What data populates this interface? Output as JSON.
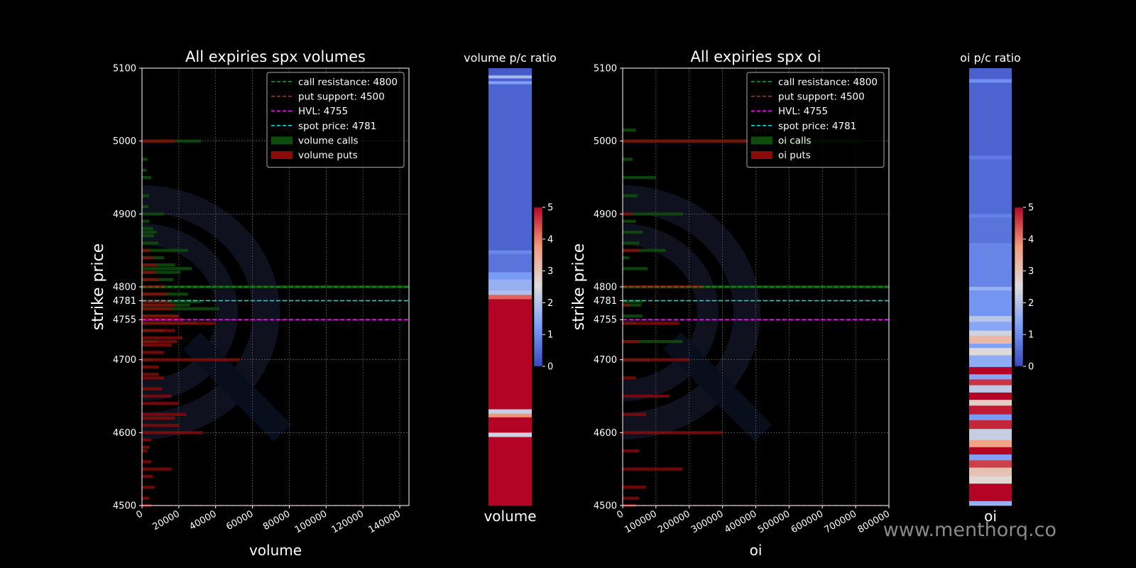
{
  "watermark": "www.menthorq.co",
  "colors": {
    "calls": "#0e4d0e",
    "puts": "#8b0a0a",
    "call_resistance": "#1fa31f",
    "put_support": "#e02020",
    "hvl": "#ff00ff",
    "spot": "#00e5e5",
    "grid": "#777777"
  },
  "chart_data": [
    {
      "type": "bar",
      "orientation": "horizontal",
      "title": "All expiries  spx volumes",
      "xlabel": "volume",
      "ylabel": "strike price",
      "xlim": [
        0,
        145000
      ],
      "ylim": [
        4500,
        5100
      ],
      "xticks": [
        0,
        20000,
        40000,
        60000,
        80000,
        100000,
        120000,
        140000
      ],
      "yticks": [
        4500,
        4600,
        4700,
        4755,
        4781,
        4800,
        4900,
        5000,
        5100
      ],
      "grid": true,
      "legend_position": "top-right",
      "lines": [
        {
          "label": "call resistance: 4800",
          "y": 4800,
          "key": "call_resistance"
        },
        {
          "label": "put support: 4500",
          "y": 4500,
          "key": "put_support"
        },
        {
          "label": "HVL: 4755",
          "y": 4755,
          "key": "hvl"
        },
        {
          "label": "spot price: 4781",
          "y": 4781,
          "key": "spot"
        }
      ],
      "series": [
        {
          "name": "volume calls",
          "key": "calls",
          "strikes": [
            5000,
            4975,
            4960,
            4950,
            4925,
            4910,
            4900,
            4890,
            4880,
            4875,
            4870,
            4860,
            4850,
            4840,
            4830,
            4825,
            4820,
            4810,
            4800,
            4790,
            4780,
            4775,
            4770,
            4760,
            4750,
            4740,
            4725,
            4700
          ],
          "values": [
            32000,
            3000,
            2500,
            5000,
            4000,
            3500,
            12000,
            4000,
            6000,
            8000,
            6500,
            9000,
            25000,
            12000,
            18000,
            27000,
            21000,
            17000,
            145000,
            25000,
            32000,
            26000,
            42000,
            20000,
            30000,
            12000,
            8000,
            6000
          ]
        },
        {
          "name": "volume puts",
          "key": "puts",
          "strikes": [
            5000,
            4850,
            4840,
            4830,
            4820,
            4810,
            4800,
            4790,
            4780,
            4775,
            4770,
            4760,
            4755,
            4750,
            4740,
            4730,
            4725,
            4720,
            4710,
            4700,
            4690,
            4680,
            4675,
            4660,
            4650,
            4640,
            4625,
            4620,
            4610,
            4600,
            4590,
            4580,
            4575,
            4560,
            4550,
            4540,
            4525,
            4510,
            4500
          ],
          "values": [
            18000,
            4000,
            6000,
            8000,
            7000,
            9000,
            12000,
            14000,
            15000,
            18000,
            16000,
            20000,
            22000,
            40000,
            18000,
            22000,
            19000,
            16000,
            12000,
            53000,
            9000,
            9000,
            12000,
            11000,
            16000,
            20000,
            24000,
            18000,
            20000,
            33000,
            5000,
            4000,
            3000,
            5000,
            16000,
            6000,
            7000,
            4000,
            5000
          ]
        }
      ]
    },
    {
      "type": "heatmap",
      "title": "volume p/c ratio",
      "xlabel": "volume",
      "colorbar_range": [
        0,
        5
      ],
      "colorbar_ticks": [
        0,
        1,
        2,
        3,
        4,
        5
      ],
      "bands": [
        {
          "from": 5100,
          "to": 5090,
          "value": 0.2
        },
        {
          "from": 5090,
          "to": 5086,
          "value": 1.8
        },
        {
          "from": 5086,
          "to": 5082,
          "value": 0.3
        },
        {
          "from": 5082,
          "to": 5078,
          "value": 1.3
        },
        {
          "from": 5078,
          "to": 4850,
          "value": 0.35
        },
        {
          "from": 4850,
          "to": 4845,
          "value": 0.9
        },
        {
          "from": 4845,
          "to": 4820,
          "value": 0.6
        },
        {
          "from": 4820,
          "to": 4810,
          "value": 1.2
        },
        {
          "from": 4810,
          "to": 4795,
          "value": 1.6
        },
        {
          "from": 4795,
          "to": 4789,
          "value": 1.9
        },
        {
          "from": 4789,
          "to": 4783,
          "value": 4.2
        },
        {
          "from": 4783,
          "to": 4632,
          "value": 5
        },
        {
          "from": 4632,
          "to": 4626,
          "value": 2.2
        },
        {
          "from": 4626,
          "to": 4621,
          "value": 3.8
        },
        {
          "from": 4621,
          "to": 4600,
          "value": 5
        },
        {
          "from": 4600,
          "to": 4594,
          "value": 2.3
        },
        {
          "from": 4594,
          "to": 4500,
          "value": 5
        }
      ]
    },
    {
      "type": "bar",
      "orientation": "horizontal",
      "title": "All expiries  spx oi",
      "xlabel": "oi",
      "ylabel": "strike price",
      "xlim": [
        0,
        800000
      ],
      "ylim": [
        4500,
        5100
      ],
      "xticks": [
        0,
        100000,
        200000,
        300000,
        400000,
        500000,
        600000,
        700000,
        800000
      ],
      "yticks": [
        4500,
        4600,
        4700,
        4755,
        4781,
        4800,
        4900,
        5000,
        5100
      ],
      "grid": true,
      "legend_position": "top-right",
      "lines": [
        {
          "label": "call resistance: 4800",
          "y": 4800,
          "key": "call_resistance"
        },
        {
          "label": "put support: 4500",
          "y": 4500,
          "key": "put_support"
        },
        {
          "label": "HVL: 4755",
          "y": 4755,
          "key": "hvl"
        },
        {
          "label": "spot price: 4781",
          "y": 4781,
          "key": "spot"
        }
      ],
      "series": [
        {
          "name": "oi calls",
          "key": "calls",
          "strikes": [
            5015,
            5000,
            4975,
            4950,
            4925,
            4900,
            4890,
            4875,
            4860,
            4850,
            4840,
            4825,
            4800,
            4780,
            4775,
            4760,
            4750,
            4725,
            4700
          ],
          "values": [
            40000,
            720000,
            30000,
            100000,
            45000,
            180000,
            40000,
            60000,
            50000,
            130000,
            20000,
            75000,
            800000,
            60000,
            55000,
            60000,
            40000,
            180000,
            80000
          ]
        },
        {
          "name": "oi puts",
          "key": "puts",
          "strikes": [
            5000,
            4900,
            4850,
            4800,
            4775,
            4750,
            4725,
            4700,
            4675,
            4650,
            4625,
            4600,
            4575,
            4550,
            4525,
            4510,
            4500
          ],
          "values": [
            380000,
            30000,
            50000,
            240000,
            20000,
            170000,
            50000,
            200000,
            40000,
            140000,
            70000,
            300000,
            50000,
            180000,
            70000,
            50000,
            40000
          ]
        }
      ]
    },
    {
      "type": "heatmap",
      "title": "oi p/c ratio",
      "xlabel": "oi",
      "colorbar_range": [
        0,
        5
      ],
      "colorbar_ticks": [
        0,
        1,
        2,
        3,
        4,
        5
      ],
      "bands": [
        {
          "from": 5100,
          "to": 5085,
          "value": 0.3
        },
        {
          "from": 5085,
          "to": 5080,
          "value": 1.0
        },
        {
          "from": 5080,
          "to": 4980,
          "value": 0.35
        },
        {
          "from": 4980,
          "to": 4975,
          "value": 0.7
        },
        {
          "from": 4975,
          "to": 4900,
          "value": 0.45
        },
        {
          "from": 4900,
          "to": 4895,
          "value": 0.8
        },
        {
          "from": 4895,
          "to": 4860,
          "value": 0.6
        },
        {
          "from": 4860,
          "to": 4855,
          "value": 0.9
        },
        {
          "from": 4855,
          "to": 4800,
          "value": 0.85
        },
        {
          "from": 4800,
          "to": 4795,
          "value": 1.6
        },
        {
          "from": 4795,
          "to": 4760,
          "value": 1.1
        },
        {
          "from": 4760,
          "to": 4752,
          "value": 2.0
        },
        {
          "from": 4752,
          "to": 4740,
          "value": 1.4
        },
        {
          "from": 4740,
          "to": 4733,
          "value": 2.3
        },
        {
          "from": 4733,
          "to": 4722,
          "value": 3.2
        },
        {
          "from": 4722,
          "to": 4716,
          "value": 1.3
        },
        {
          "from": 4716,
          "to": 4706,
          "value": 2.6
        },
        {
          "from": 4706,
          "to": 4690,
          "value": 1.5
        },
        {
          "from": 4690,
          "to": 4680,
          "value": 5
        },
        {
          "from": 4680,
          "to": 4673,
          "value": 1.4
        },
        {
          "from": 4673,
          "to": 4665,
          "value": 4.6
        },
        {
          "from": 4665,
          "to": 4655,
          "value": 2.1
        },
        {
          "from": 4655,
          "to": 4645,
          "value": 5
        },
        {
          "from": 4645,
          "to": 4637,
          "value": 2.8
        },
        {
          "from": 4637,
          "to": 4625,
          "value": 4.8
        },
        {
          "from": 4625,
          "to": 4617,
          "value": 1.2
        },
        {
          "from": 4617,
          "to": 4605,
          "value": 4.7
        },
        {
          "from": 4605,
          "to": 4590,
          "value": 2.2
        },
        {
          "from": 4590,
          "to": 4580,
          "value": 3.6
        },
        {
          "from": 4580,
          "to": 4570,
          "value": 5
        },
        {
          "from": 4570,
          "to": 4562,
          "value": 1.3
        },
        {
          "from": 4562,
          "to": 4552,
          "value": 4.5
        },
        {
          "from": 4552,
          "to": 4540,
          "value": 3.0
        },
        {
          "from": 4540,
          "to": 4530,
          "value": 2.6
        },
        {
          "from": 4530,
          "to": 4506,
          "value": 5
        },
        {
          "from": 4506,
          "to": 4500,
          "value": 1.6
        }
      ]
    }
  ]
}
